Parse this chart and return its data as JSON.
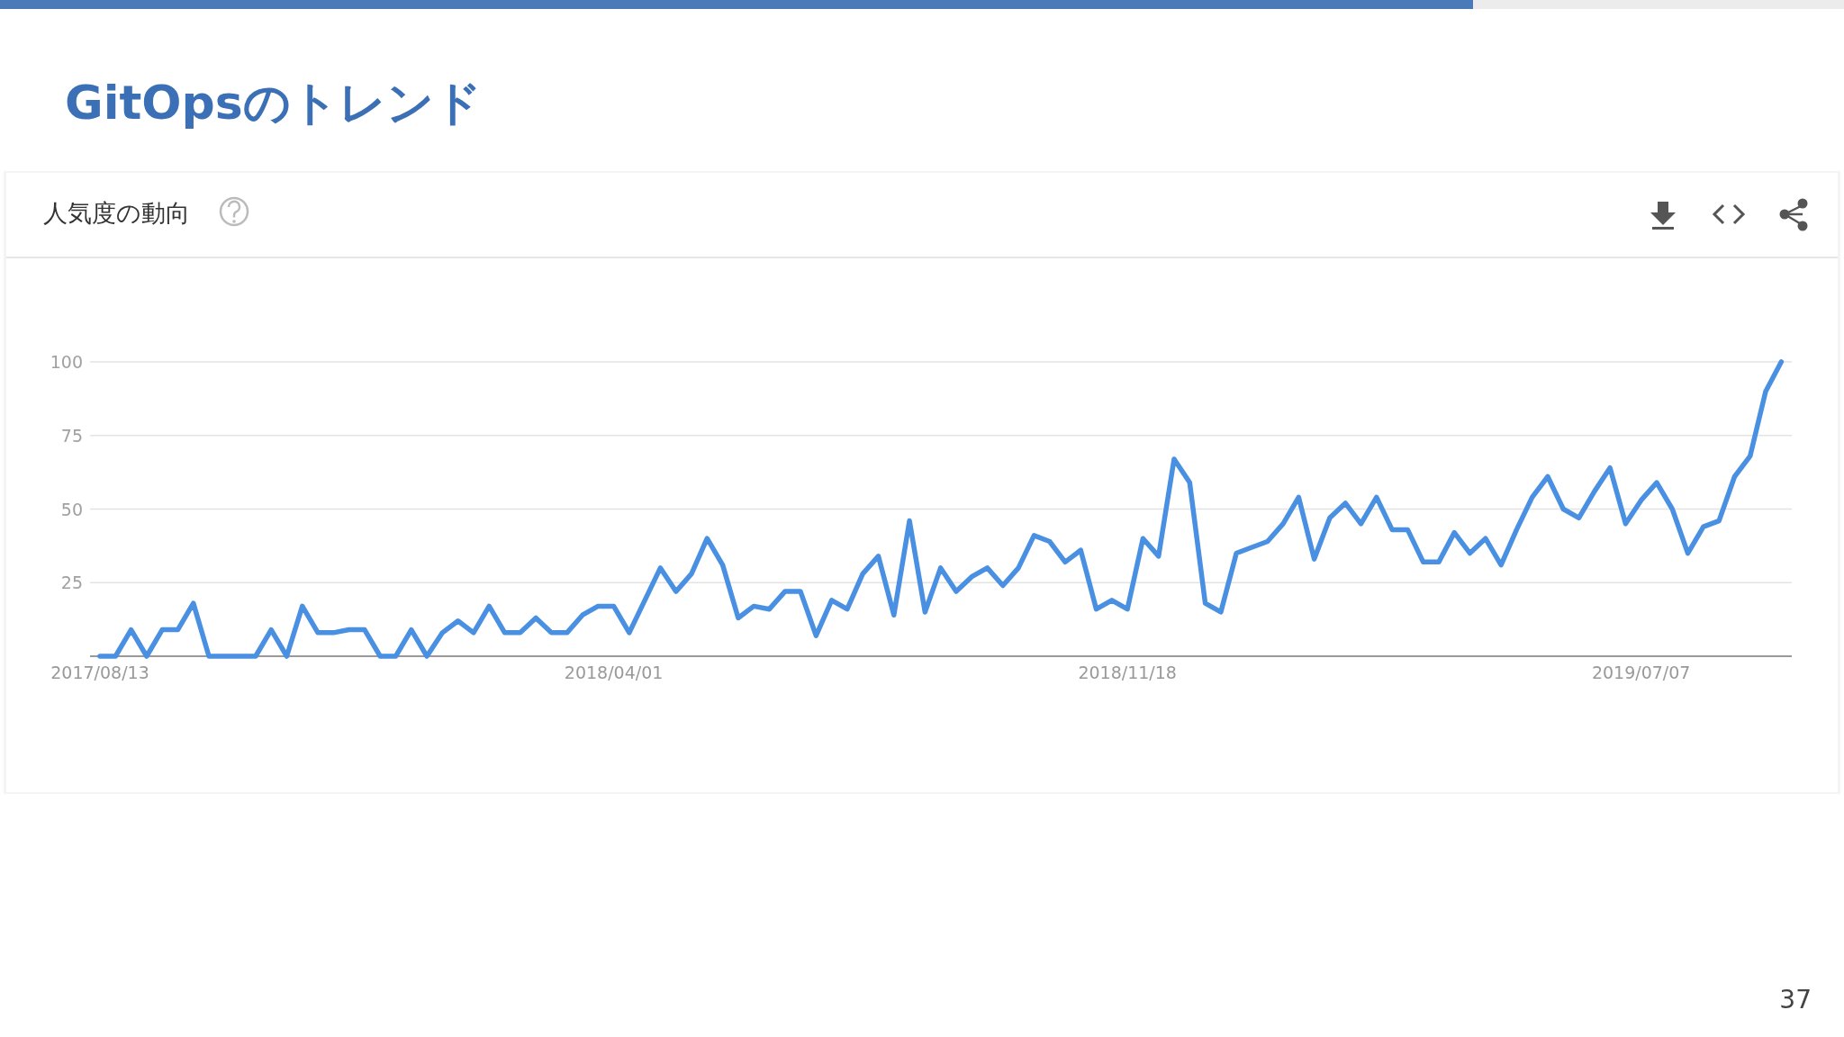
{
  "chart_data": {
    "type": "line",
    "title": "GitOpsのトレンド",
    "subtitle": "人気度の動向",
    "categories": [
      "2017/08/13",
      null,
      null,
      null,
      null,
      null,
      null,
      null,
      null,
      null,
      null,
      null,
      null,
      null,
      null,
      null,
      null,
      null,
      null,
      null,
      null,
      null,
      null,
      null,
      null,
      null,
      null,
      null,
      null,
      null,
      null,
      null,
      null,
      "2018/04/01",
      null,
      null,
      null,
      null,
      null,
      null,
      null,
      null,
      null,
      null,
      null,
      null,
      null,
      null,
      null,
      null,
      null,
      null,
      null,
      null,
      null,
      null,
      null,
      null,
      null,
      null,
      null,
      null,
      null,
      null,
      null,
      null,
      "2018/11/18",
      null,
      null,
      null,
      null,
      null,
      null,
      null,
      null,
      null,
      null,
      null,
      null,
      null,
      null,
      null,
      null,
      null,
      null,
      null,
      null,
      null,
      null,
      null,
      null,
      null,
      null,
      null,
      null,
      null,
      null,
      null,
      null,
      "2019/07/07",
      null,
      null,
      null,
      null,
      null,
      null,
      null,
      null,
      null
    ],
    "values": [
      0,
      0,
      9,
      0,
      9,
      9,
      18,
      0,
      0,
      0,
      0,
      9,
      0,
      17,
      8,
      8,
      9,
      9,
      0,
      0,
      9,
      0,
      8,
      12,
      8,
      17,
      8,
      8,
      13,
      8,
      8,
      14,
      17,
      17,
      8,
      19,
      30,
      22,
      28,
      40,
      31,
      13,
      17,
      16,
      22,
      22,
      7,
      19,
      16,
      28,
      34,
      14,
      46,
      15,
      30,
      22,
      27,
      30,
      24,
      30,
      41,
      39,
      32,
      36,
      16,
      19,
      16,
      40,
      34,
      67,
      59,
      18,
      15,
      35,
      37,
      39,
      45,
      54,
      33,
      47,
      52,
      45,
      54,
      43,
      43,
      32,
      32,
      42,
      35,
      40,
      31,
      43,
      54,
      61,
      50,
      47,
      56,
      64,
      45,
      53,
      59,
      50,
      35,
      44,
      46,
      61,
      68,
      90,
      100
    ],
    "color": "#4a90e2",
    "ylim": [
      0,
      100
    ],
    "yticks": [
      {
        "value": 0,
        "label": null
      },
      25,
      50,
      75,
      100
    ],
    "grid": "y",
    "annotations": [
      "37"
    ]
  }
}
